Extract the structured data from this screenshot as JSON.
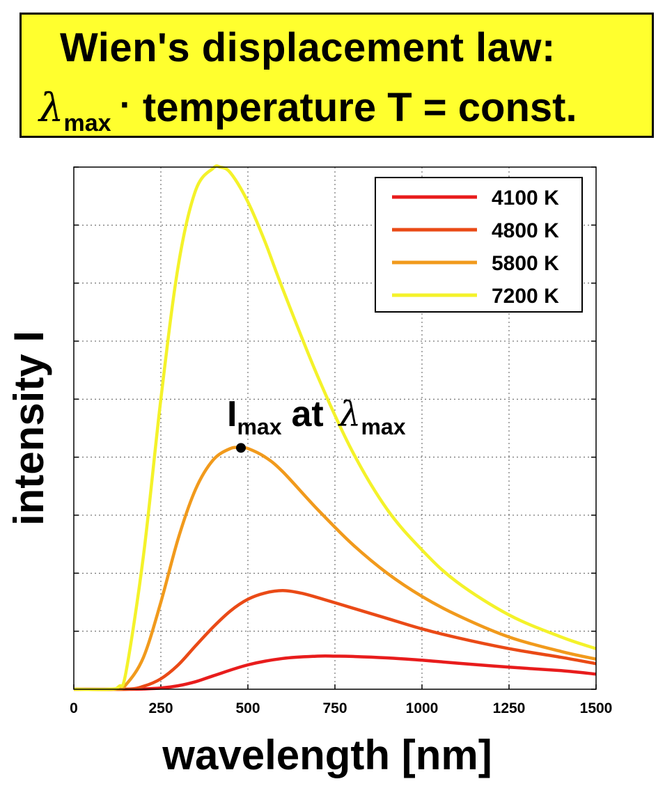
{
  "header": {
    "title_line1": "Wien's displacement law:",
    "title_line2_lambda": "λ",
    "title_line2_sub": "max",
    "title_line2_dot": "·",
    "title_line2_rest": "temperature T = const.",
    "background_color": "#ffff2e"
  },
  "chart_data": {
    "type": "line",
    "title": "Wien's displacement law: λmax · temperature T = const.",
    "xlabel": "wavelength [nm]",
    "ylabel": "intensity I",
    "xlim": [
      0,
      1500
    ],
    "x_ticks": [
      0,
      250,
      500,
      750,
      1000,
      1250,
      1500
    ],
    "x_tick_labels": [
      "0",
      "250",
      "500",
      "750",
      "1000",
      "1250",
      "1500"
    ],
    "ylim": [
      0,
      9
    ],
    "y_ticks": [
      0,
      1,
      2,
      3,
      4,
      5,
      6,
      7,
      8,
      9
    ],
    "y_tick_labels_shown": false,
    "grid": true,
    "legend_position": "top-right",
    "annotation": {
      "text_I": "I",
      "text_sub1": "max",
      "text_at": "at",
      "text_lambda": "λ",
      "text_sub2": "max",
      "point_x": 480,
      "point_y": 4.16
    },
    "series": [
      {
        "name": "4100 K",
        "temperature": 4100,
        "color": "#e81c1c",
        "x": [
          0,
          150,
          200,
          250,
          300,
          350,
          400,
          500,
          600,
          700,
          750,
          800,
          900,
          1000,
          1100,
          1250,
          1400,
          1500
        ],
        "values": [
          0,
          0,
          0.005,
          0.02,
          0.06,
          0.13,
          0.23,
          0.42,
          0.53,
          0.57,
          0.57,
          0.565,
          0.54,
          0.5,
          0.45,
          0.38,
          0.32,
          0.26
        ]
      },
      {
        "name": "4800 K",
        "temperature": 4800,
        "color": "#ea4a16",
        "x": [
          0,
          150,
          200,
          250,
          300,
          350,
          400,
          450,
          500,
          550,
          600,
          650,
          700,
          800,
          900,
          1000,
          1100,
          1250,
          1400,
          1500
        ],
        "values": [
          0,
          0,
          0.05,
          0.18,
          0.42,
          0.75,
          1.07,
          1.35,
          1.55,
          1.66,
          1.7,
          1.66,
          1.58,
          1.4,
          1.22,
          1.04,
          0.89,
          0.7,
          0.55,
          0.44
        ]
      },
      {
        "name": "5800 K",
        "temperature": 5800,
        "color": "#f19a1c",
        "x": [
          0,
          120,
          150,
          200,
          250,
          300,
          350,
          400,
          450,
          480,
          500,
          550,
          600,
          700,
          800,
          900,
          1000,
          1100,
          1250,
          1400,
          1500
        ],
        "values": [
          0,
          0,
          0.08,
          0.55,
          1.5,
          2.6,
          3.45,
          3.95,
          4.15,
          4.16,
          4.15,
          4.0,
          3.75,
          3.1,
          2.5,
          2.0,
          1.6,
          1.28,
          0.9,
          0.65,
          0.52
        ]
      },
      {
        "name": "7200 K",
        "temperature": 7200,
        "color": "#f4f22a",
        "x": [
          0,
          100,
          130,
          150,
          200,
          250,
          300,
          350,
          400,
          420,
          450,
          500,
          550,
          600,
          700,
          800,
          900,
          1000,
          1100,
          1250,
          1400,
          1500
        ],
        "values": [
          0,
          0,
          0.05,
          0.3,
          2.3,
          5.0,
          7.3,
          8.6,
          8.98,
          9.0,
          8.9,
          8.4,
          7.7,
          6.9,
          5.4,
          4.1,
          3.1,
          2.4,
          1.85,
          1.28,
          0.9,
          0.7
        ]
      }
    ]
  }
}
